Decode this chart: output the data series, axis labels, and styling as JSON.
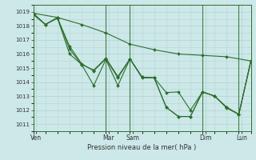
{
  "background_color": "#cce8e8",
  "grid_color": "#b8d4d4",
  "line_color": "#2d6e2d",
  "xlabel": "Pression niveau de la mer( hPa )",
  "ylim": [
    1010.5,
    1019.5
  ],
  "xlim": [
    0,
    36
  ],
  "yticks": [
    1011,
    1012,
    1013,
    1014,
    1015,
    1016,
    1017,
    1018,
    1019
  ],
  "xtick_positions": [
    0.5,
    12.5,
    16.5,
    28.5,
    34.5
  ],
  "xtick_labels": [
    "Ven",
    "Mar",
    "Sam",
    "Dim",
    "Lun"
  ],
  "vlines": [
    12,
    16,
    28,
    34
  ],
  "series": [
    {
      "x": [
        0,
        4,
        8,
        12,
        16,
        20,
        24,
        28,
        32,
        36
      ],
      "y": [
        1018.9,
        1018.6,
        1018.1,
        1017.5,
        1016.7,
        1016.3,
        1016.0,
        1015.9,
        1015.8,
        1015.5
      ]
    },
    {
      "x": [
        0,
        2,
        4,
        6,
        8,
        10,
        12,
        14,
        16,
        18,
        20,
        22,
        24,
        26,
        28,
        30,
        32,
        34,
        36
      ],
      "y": [
        1018.8,
        1018.1,
        1018.55,
        1016.55,
        1015.3,
        1014.8,
        1015.65,
        1014.3,
        1015.65,
        1014.35,
        1014.3,
        1013.25,
        1013.3,
        1012.0,
        1013.3,
        1013.0,
        1012.2,
        1011.7,
        1015.5
      ]
    },
    {
      "x": [
        0,
        2,
        4,
        6,
        8,
        10,
        12,
        14,
        16,
        18,
        20,
        22,
        24,
        26,
        28,
        30,
        32,
        34,
        36
      ],
      "y": [
        1018.9,
        1018.1,
        1018.6,
        1016.35,
        1015.25,
        1014.85,
        1015.7,
        1014.4,
        1015.65,
        1014.35,
        1014.3,
        1012.2,
        1011.55,
        1011.55,
        1013.3,
        1013.0,
        1012.2,
        1011.7,
        1015.5
      ]
    },
    {
      "x": [
        0,
        2,
        4,
        6,
        8,
        10,
        12,
        14,
        16,
        18,
        20,
        22,
        24,
        26,
        28,
        30,
        32,
        34,
        36
      ],
      "y": [
        1018.85,
        1018.1,
        1018.55,
        1016.0,
        1015.25,
        1013.75,
        1015.6,
        1013.75,
        1015.65,
        1014.3,
        1014.3,
        1012.2,
        1011.55,
        1011.55,
        1013.3,
        1013.0,
        1012.15,
        1011.7,
        1015.5
      ]
    }
  ]
}
